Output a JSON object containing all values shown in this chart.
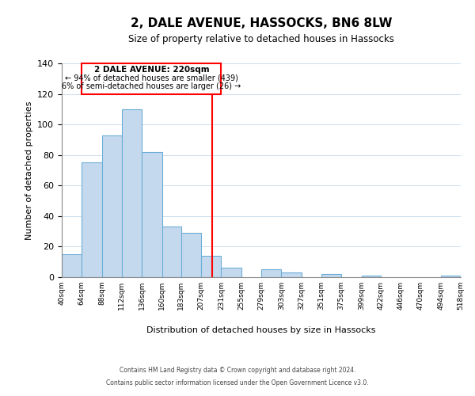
{
  "title": "2, DALE AVENUE, HASSOCKS, BN6 8LW",
  "subtitle": "Size of property relative to detached houses in Hassocks",
  "xlabel": "Distribution of detached houses by size in Hassocks",
  "ylabel": "Number of detached properties",
  "bar_color": "#c5d9ee",
  "bar_edge_color": "#6aaed6",
  "bin_edges": [
    40,
    64,
    88,
    112,
    136,
    160,
    183,
    207,
    231,
    255,
    279,
    303,
    327,
    351,
    375,
    399,
    422,
    446,
    470,
    494,
    518
  ],
  "bar_heights": [
    15,
    75,
    93,
    110,
    82,
    33,
    29,
    14,
    6,
    0,
    5,
    3,
    0,
    2,
    0,
    1,
    0,
    0,
    0,
    1
  ],
  "tick_labels": [
    "40sqm",
    "64sqm",
    "88sqm",
    "112sqm",
    "136sqm",
    "160sqm",
    "183sqm",
    "207sqm",
    "231sqm",
    "255sqm",
    "279sqm",
    "303sqm",
    "327sqm",
    "351sqm",
    "375sqm",
    "399sqm",
    "422sqm",
    "446sqm",
    "470sqm",
    "494sqm",
    "518sqm"
  ],
  "property_line_x": 220,
  "ylim": [
    0,
    140
  ],
  "yticks": [
    0,
    20,
    40,
    60,
    80,
    100,
    120,
    140
  ],
  "annotation_title": "2 DALE AVENUE: 220sqm",
  "annotation_line1": "← 94% of detached houses are smaller (439)",
  "annotation_line2": "6% of semi-detached houses are larger (26) →",
  "footnote1": "Contains HM Land Registry data © Crown copyright and database right 2024.",
  "footnote2": "Contains public sector information licensed under the Open Government Licence v3.0.",
  "background_color": "#ffffff",
  "grid_color": "#ccddee"
}
